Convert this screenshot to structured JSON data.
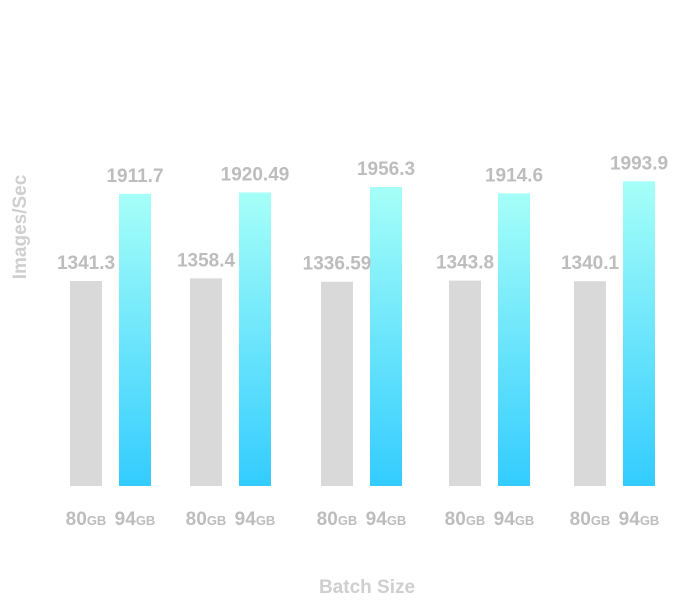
{
  "chart_data": {
    "type": "bar",
    "title": "",
    "xlabel": "Batch Size",
    "ylabel": "Images/Sec",
    "grid": false,
    "legend": "none",
    "groups": 5,
    "ylim": [
      0,
      2100
    ],
    "series": [
      {
        "tick_value": "80",
        "tick_unit": "GB",
        "color": "#d9d9d9",
        "values": [
          1341.3,
          1358.4,
          1336.59,
          1343.8,
          1340.1
        ],
        "labels": [
          "1341.3",
          "1358.4",
          "1336.59",
          "1343.8",
          "1340.1"
        ]
      },
      {
        "tick_value": "94",
        "tick_unit": "GB",
        "color_top": "#a6fff8",
        "color_bottom": "#33ccff",
        "values": [
          1911.7,
          1920.49,
          1956.3,
          1914.6,
          1993.9
        ],
        "labels": [
          "1911.7",
          "1920.49",
          "1956.3",
          "1914.6",
          "1993.9"
        ]
      }
    ]
  }
}
